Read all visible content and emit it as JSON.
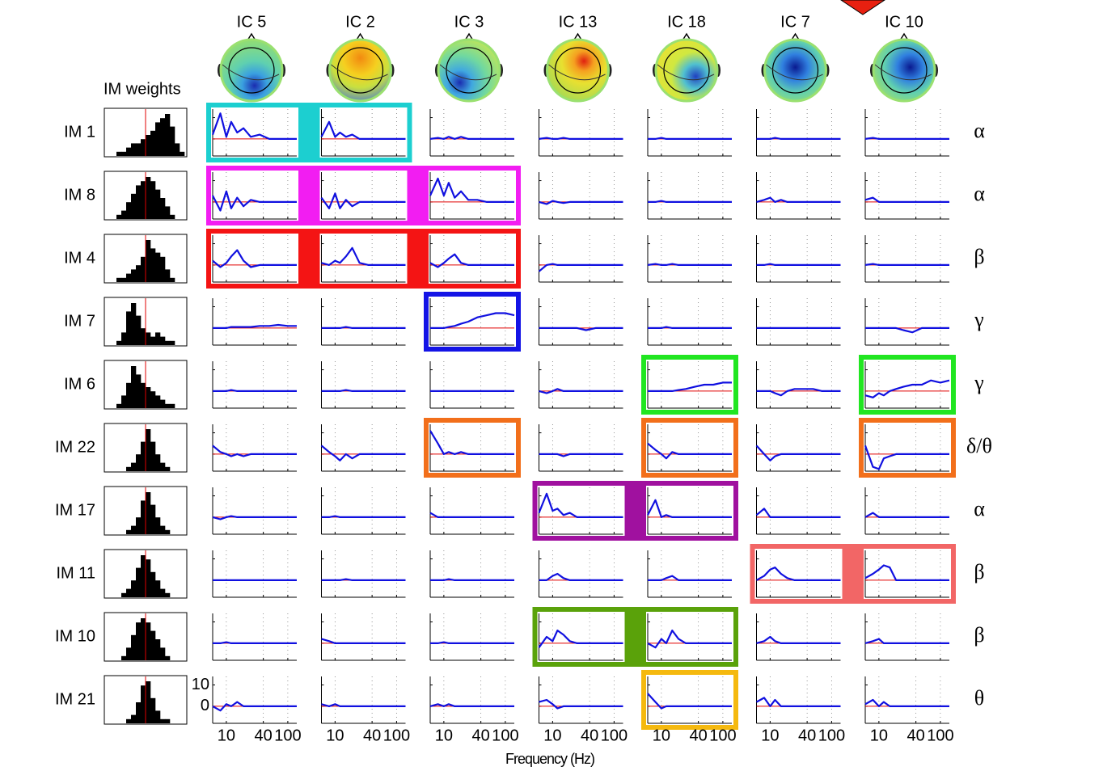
{
  "chart_data": {
    "type": "spectra-grid",
    "weights_title": "IM weights",
    "x_label": "Frequency (Hz)",
    "columns": [
      "IC 5",
      "IC 2",
      "IC 3",
      "IC 13",
      "IC 18",
      "IC 7",
      "IC 10"
    ],
    "rows": [
      "IM 1",
      "IM 8",
      "IM 4",
      "IM 7",
      "IM 6",
      "IM 22",
      "IM 17",
      "IM 11",
      "IM 10",
      "IM 21"
    ],
    "bands": [
      "α",
      "α",
      "β",
      "γ",
      "γ",
      "δ/θ",
      "α",
      "β",
      "β",
      "θ"
    ],
    "xscale": "log",
    "x": [
      6,
      8,
      10,
      12,
      15,
      19,
      25,
      35,
      50,
      70,
      100,
      140
    ],
    "xlim": [
      6,
      140
    ],
    "xticks": [
      10,
      40,
      100
    ],
    "ylim": [
      -8,
      14
    ],
    "yticks": [
      0,
      10
    ],
    "line_color": "#1010e0",
    "zero_color": "#e00000",
    "weights_ylim": [
      0,
      10
    ],
    "weights": [
      [
        0,
        0,
        1,
        1,
        2,
        3,
        3,
        4,
        5,
        6,
        8,
        9,
        10,
        7,
        3,
        1
      ],
      [
        0,
        0,
        1,
        2,
        4,
        6,
        8,
        9,
        10,
        9,
        7,
        5,
        3,
        1,
        0,
        0
      ],
      [
        0,
        0,
        1,
        1,
        2,
        3,
        4,
        6,
        10,
        8,
        7,
        6,
        3,
        1,
        0,
        0
      ],
      [
        0,
        0,
        1,
        3,
        8,
        10,
        7,
        4,
        3,
        2,
        3,
        2,
        1,
        1,
        0,
        0
      ],
      [
        0,
        0,
        1,
        3,
        6,
        10,
        8,
        6,
        5,
        4,
        3,
        2,
        1,
        1,
        0,
        0
      ],
      [
        0,
        0,
        0,
        0,
        1,
        2,
        4,
        7,
        10,
        7,
        4,
        2,
        1,
        0,
        0,
        0
      ],
      [
        0,
        0,
        0,
        0,
        1,
        2,
        4,
        8,
        10,
        7,
        4,
        2,
        1,
        0,
        0,
        0
      ],
      [
        0,
        0,
        0,
        1,
        2,
        4,
        7,
        10,
        9,
        6,
        4,
        2,
        1,
        0,
        0,
        0
      ],
      [
        0,
        0,
        0,
        1,
        3,
        6,
        9,
        10,
        9,
        7,
        5,
        3,
        1,
        0,
        0,
        0
      ],
      [
        0,
        0,
        0,
        0,
        1,
        2,
        5,
        9,
        10,
        6,
        3,
        1,
        1,
        0,
        0,
        0
      ]
    ],
    "spectra": [
      [
        [
          2,
          12,
          1,
          8,
          3,
          5,
          1,
          2,
          0,
          0,
          0,
          0
        ],
        [
          1,
          8,
          1,
          3,
          1,
          2,
          0,
          0,
          0,
          0,
          0,
          0
        ],
        [
          0,
          0.5,
          0,
          1,
          0,
          1,
          0,
          0,
          0,
          0,
          0,
          0
        ],
        [
          0,
          0.5,
          0,
          0,
          0.5,
          0,
          0,
          0,
          0,
          0,
          0,
          0
        ],
        [
          0,
          0,
          0.5,
          0,
          0,
          0,
          0,
          0,
          0,
          0,
          0,
          0
        ],
        [
          0,
          0,
          0,
          0.5,
          0,
          0,
          0,
          0,
          0,
          0,
          0,
          0
        ],
        [
          0,
          0.5,
          0,
          0,
          0,
          0,
          0,
          0,
          0,
          0,
          0,
          0
        ]
      ],
      [
        [
          3,
          -4,
          5,
          -3,
          2,
          -2,
          1,
          0,
          0,
          0,
          0,
          0
        ],
        [
          2,
          -3,
          4,
          -3,
          1,
          -2,
          0,
          0,
          0,
          0,
          0,
          0
        ],
        [
          3,
          11,
          3,
          9,
          2,
          5,
          1,
          1,
          0,
          0,
          0,
          0
        ],
        [
          0,
          -1,
          0.5,
          0,
          -0.5,
          0,
          0,
          0,
          0,
          0,
          0,
          0
        ],
        [
          0,
          0,
          0.5,
          0,
          0,
          0,
          0,
          0,
          0,
          0,
          0,
          0
        ],
        [
          0,
          1,
          2,
          0,
          1,
          0,
          0,
          0,
          0,
          0,
          0,
          0
        ],
        [
          1,
          2,
          0,
          0,
          0,
          0,
          0,
          0,
          0,
          0,
          0,
          0
        ]
      ],
      [
        [
          2,
          -1,
          1,
          4,
          7,
          2,
          -1,
          0,
          0,
          0,
          0,
          0
        ],
        [
          1,
          0,
          2,
          1,
          4,
          8,
          1,
          0,
          0,
          0,
          0,
          0
        ],
        [
          1,
          -1,
          1,
          3,
          5,
          1,
          0,
          0,
          0,
          0,
          0,
          0
        ],
        [
          -3,
          0,
          0.5,
          0,
          0,
          0,
          0,
          0,
          0,
          0,
          0,
          0
        ],
        [
          0,
          0.5,
          0,
          0,
          0.5,
          0,
          0,
          0,
          0,
          0,
          0,
          0
        ],
        [
          0,
          0,
          0.5,
          0,
          0,
          0,
          0,
          0,
          0,
          0,
          0,
          0
        ],
        [
          0,
          0.5,
          0,
          0,
          0,
          0,
          0,
          0,
          0,
          0,
          0,
          0
        ]
      ],
      [
        [
          0,
          0,
          0,
          0.5,
          0.5,
          0.5,
          0.5,
          1,
          1,
          1.5,
          1,
          1
        ],
        [
          0,
          0,
          0,
          0,
          0.5,
          0,
          0,
          0,
          0,
          0,
          0,
          0
        ],
        [
          0,
          0,
          0,
          0.5,
          1,
          2,
          3,
          5,
          6,
          7,
          7,
          6
        ],
        [
          0,
          0,
          0,
          0,
          0,
          0,
          0,
          -1,
          0,
          0,
          0,
          0
        ],
        [
          0,
          0,
          0,
          0.5,
          0,
          0,
          0,
          0,
          0,
          0,
          0,
          0
        ],
        [
          0,
          0,
          0,
          0,
          0,
          0,
          0,
          0,
          0,
          0,
          0,
          0
        ],
        [
          0,
          0,
          0,
          0,
          0,
          0,
          -1,
          -2,
          0,
          0,
          0,
          0
        ]
      ],
      [
        [
          0,
          0,
          0,
          0.5,
          0,
          0,
          0,
          0,
          0,
          0,
          0,
          0
        ],
        [
          0,
          0,
          0,
          0,
          0.5,
          0,
          0,
          0,
          0,
          0,
          0,
          0
        ],
        [
          0,
          0,
          0,
          0,
          0,
          0,
          0,
          0,
          0,
          0,
          0,
          0
        ],
        [
          0,
          -1,
          0,
          1,
          0,
          0,
          0,
          0,
          0,
          0,
          0,
          0
        ],
        [
          0,
          0,
          0,
          0,
          0,
          0.5,
          1,
          2,
          3,
          3,
          4,
          4
        ],
        [
          0,
          0,
          0,
          -1,
          -2,
          0,
          1,
          1,
          1,
          0,
          0,
          0
        ],
        [
          -2,
          -3,
          -1,
          -2,
          0,
          1,
          2,
          3,
          3,
          5,
          4,
          5
        ]
      ],
      [
        [
          4,
          1,
          0,
          -1,
          0,
          -1,
          0,
          0,
          0,
          0,
          0,
          0
        ],
        [
          4,
          1,
          -1,
          -3,
          0,
          -2,
          0,
          0,
          0,
          0,
          0,
          0
        ],
        [
          11,
          5,
          0,
          1,
          0,
          1,
          0,
          0,
          0,
          0,
          0,
          0
        ],
        [
          0,
          0,
          0,
          0,
          -1,
          0,
          0,
          0,
          0,
          0,
          0,
          0
        ],
        [
          5,
          2,
          0,
          -2,
          1,
          0,
          0,
          0,
          0,
          0,
          0,
          0
        ],
        [
          4,
          0,
          -3,
          -1,
          0,
          0,
          0,
          0,
          0,
          0,
          0,
          0
        ],
        [
          4,
          -6,
          -7,
          -2,
          -1,
          0,
          0,
          0,
          0,
          0,
          0,
          0
        ]
      ],
      [
        [
          0,
          -1,
          0,
          0.5,
          0,
          0,
          0,
          0,
          0,
          0,
          0,
          0
        ],
        [
          0,
          0,
          0.5,
          0,
          0,
          0,
          0,
          0,
          0,
          0,
          0,
          0
        ],
        [
          2,
          0,
          0,
          0,
          0,
          0,
          0,
          0,
          0,
          0,
          0,
          0
        ],
        [
          2,
          11,
          3,
          4,
          1,
          2,
          0,
          0,
          0,
          0,
          0,
          0
        ],
        [
          1,
          8,
          0,
          1,
          0,
          0,
          0,
          0,
          0,
          0,
          0,
          0
        ],
        [
          1,
          4,
          0,
          0,
          0,
          0,
          0,
          0,
          0,
          0,
          0,
          0
        ],
        [
          0,
          2,
          0,
          0,
          0,
          0,
          0,
          0,
          0,
          0,
          0,
          0
        ]
      ],
      [
        [
          0,
          0,
          0,
          0,
          0,
          0,
          0,
          0,
          0,
          0,
          0,
          0
        ],
        [
          0,
          0,
          0,
          0,
          0.5,
          0,
          0,
          0,
          0,
          0,
          0,
          0
        ],
        [
          0,
          0,
          0,
          0.5,
          0,
          0,
          0,
          0,
          0,
          0,
          0,
          0
        ],
        [
          0,
          0,
          2,
          3,
          1,
          0,
          0,
          0,
          0,
          0,
          0,
          0
        ],
        [
          0,
          0,
          0,
          1,
          2,
          0,
          0,
          0,
          0,
          0,
          0,
          0
        ],
        [
          0,
          2,
          5,
          6,
          3,
          1,
          0,
          0,
          0,
          0,
          0,
          0
        ],
        [
          1,
          3,
          5,
          7,
          6,
          0,
          0,
          0,
          0,
          0,
          0,
          0
        ]
      ],
      [
        [
          0,
          0,
          0.5,
          0,
          0,
          0,
          0,
          0,
          0,
          0,
          0,
          0
        ],
        [
          2,
          1,
          0,
          0,
          0,
          0,
          0,
          0,
          0,
          0,
          0,
          0
        ],
        [
          0,
          0,
          0.5,
          0,
          0,
          0,
          0,
          0,
          0,
          0,
          0,
          0
        ],
        [
          -2,
          3,
          1,
          6,
          4,
          1,
          0,
          0,
          0,
          0,
          0,
          0
        ],
        [
          0,
          -2,
          2,
          0,
          6,
          2,
          0,
          0,
          0,
          0,
          0,
          0
        ],
        [
          0,
          1,
          3,
          1,
          0,
          0,
          0,
          0,
          0,
          0,
          0,
          0
        ],
        [
          0,
          1,
          2,
          0,
          0,
          0,
          0,
          0,
          0,
          0,
          0,
          0
        ]
      ],
      [
        [
          0,
          -2,
          1,
          0,
          2,
          0,
          0,
          0,
          0,
          0,
          0,
          0
        ],
        [
          1,
          0,
          1,
          0,
          0,
          0,
          0,
          0,
          0,
          0,
          0,
          0
        ],
        [
          0,
          1,
          0,
          1,
          0,
          0,
          0,
          0,
          0,
          0,
          0,
          0
        ],
        [
          2,
          3,
          1,
          -1,
          0,
          0,
          0,
          0,
          0,
          0,
          0,
          0
        ],
        [
          6,
          2,
          -1,
          0,
          0,
          0,
          0,
          0,
          0,
          0,
          0,
          0
        ],
        [
          2,
          4,
          0,
          3,
          0,
          0,
          0,
          0,
          0,
          0,
          0,
          0
        ],
        [
          1,
          3,
          0,
          2,
          0,
          0,
          0,
          0,
          0,
          0,
          0,
          0
        ]
      ]
    ],
    "highlights": [
      {
        "row": 0,
        "columns": [
          0,
          1
        ],
        "color": "#1ccfd0"
      },
      {
        "row": 1,
        "columns": [
          0,
          2
        ],
        "color": "#f21df2"
      },
      {
        "row": 2,
        "columns": [
          0,
          2
        ],
        "color": "#f41414"
      },
      {
        "row": 3,
        "columns": [
          2,
          2
        ],
        "color": "#1414e6"
      },
      {
        "row": 4,
        "columns": [
          4,
          4
        ],
        "color": "#21e621"
      },
      {
        "row": 4,
        "columns": [
          6,
          6
        ],
        "color": "#21e621"
      },
      {
        "row": 5,
        "columns": [
          2,
          2
        ],
        "color": "#f26f1b"
      },
      {
        "row": 5,
        "columns": [
          4,
          4
        ],
        "color": "#f26f1b"
      },
      {
        "row": 5,
        "columns": [
          6,
          6
        ],
        "color": "#f26f1b"
      },
      {
        "row": 6,
        "columns": [
          3,
          4
        ],
        "color": "#a0119f"
      },
      {
        "row": 7,
        "columns": [
          5,
          6
        ],
        "color": "#f26666"
      },
      {
        "row": 8,
        "columns": [
          3,
          4
        ],
        "color": "#5aa20a"
      },
      {
        "row": 9,
        "columns": [
          4,
          4
        ],
        "color": "#f5b90f"
      }
    ]
  }
}
